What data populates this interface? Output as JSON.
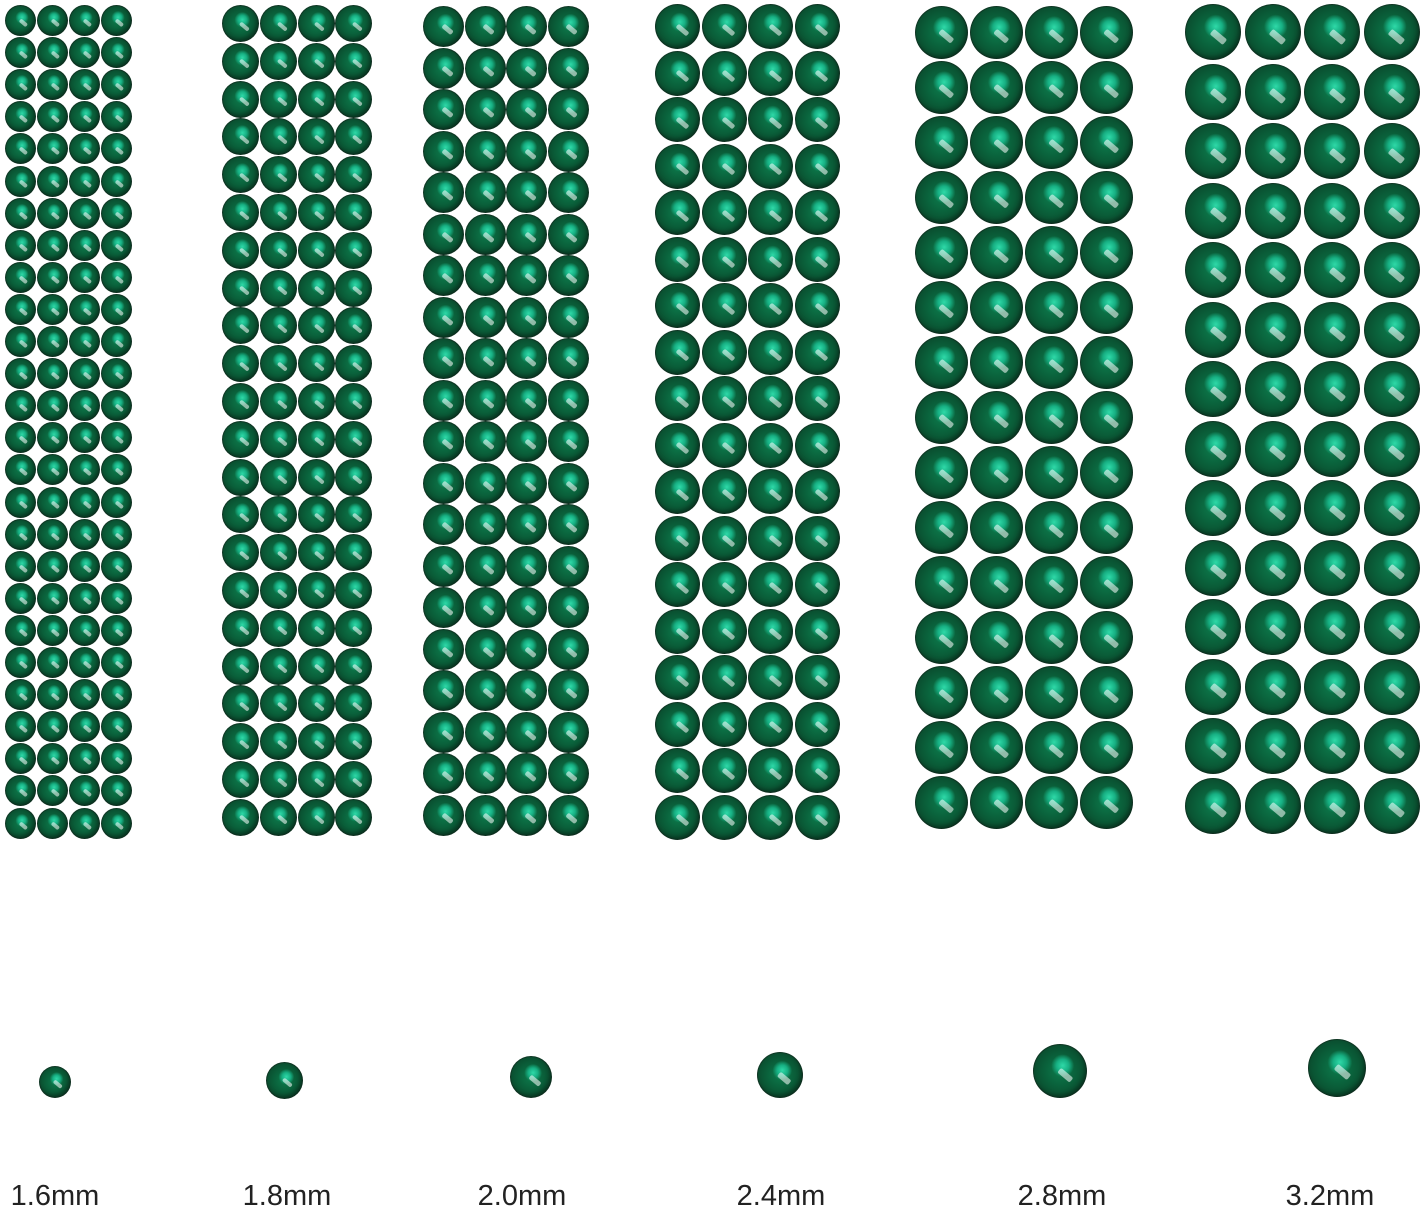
{
  "product": "emerald green flatback rhinestones",
  "colors": {
    "gem": "#0a5e39",
    "highlight": "#2fd9a8",
    "background": "#ffffff"
  },
  "sizes": [
    {
      "label": "1.6mm"
    },
    {
      "label": "1.8mm"
    },
    {
      "label": "2.0mm"
    },
    {
      "label": "2.4mm"
    },
    {
      "label": "2.8mm"
    },
    {
      "label": "3.2mm"
    }
  ]
}
